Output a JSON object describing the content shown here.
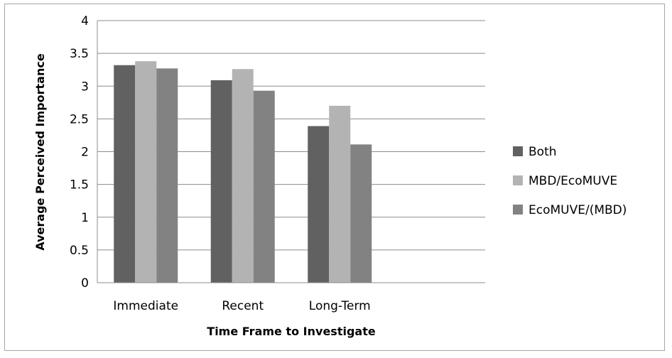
{
  "chart_data": {
    "type": "bar",
    "title": "",
    "xlabel": "Time Frame to Investigate",
    "ylabel": "Average Perceived Importance",
    "categories": [
      "Immediate",
      "Recent",
      "Long-Term"
    ],
    "series": [
      {
        "name": "Both",
        "color": "#616161",
        "values": [
          3.32,
          3.09,
          2.39
        ]
      },
      {
        "name": "MBD/EcoMUVE",
        "color": "#b3b3b3",
        "values": [
          3.38,
          3.26,
          2.7
        ]
      },
      {
        "name": "EcoMUVE/(MBD)",
        "color": "#828282",
        "values": [
          3.27,
          2.93,
          2.11
        ]
      }
    ],
    "ylim": [
      0,
      4
    ],
    "yticks": [
      "0",
      "0.5",
      "1",
      "1.5",
      "2",
      "2.5",
      "3",
      "3.5",
      "4"
    ],
    "grid": true,
    "legend": "right"
  }
}
